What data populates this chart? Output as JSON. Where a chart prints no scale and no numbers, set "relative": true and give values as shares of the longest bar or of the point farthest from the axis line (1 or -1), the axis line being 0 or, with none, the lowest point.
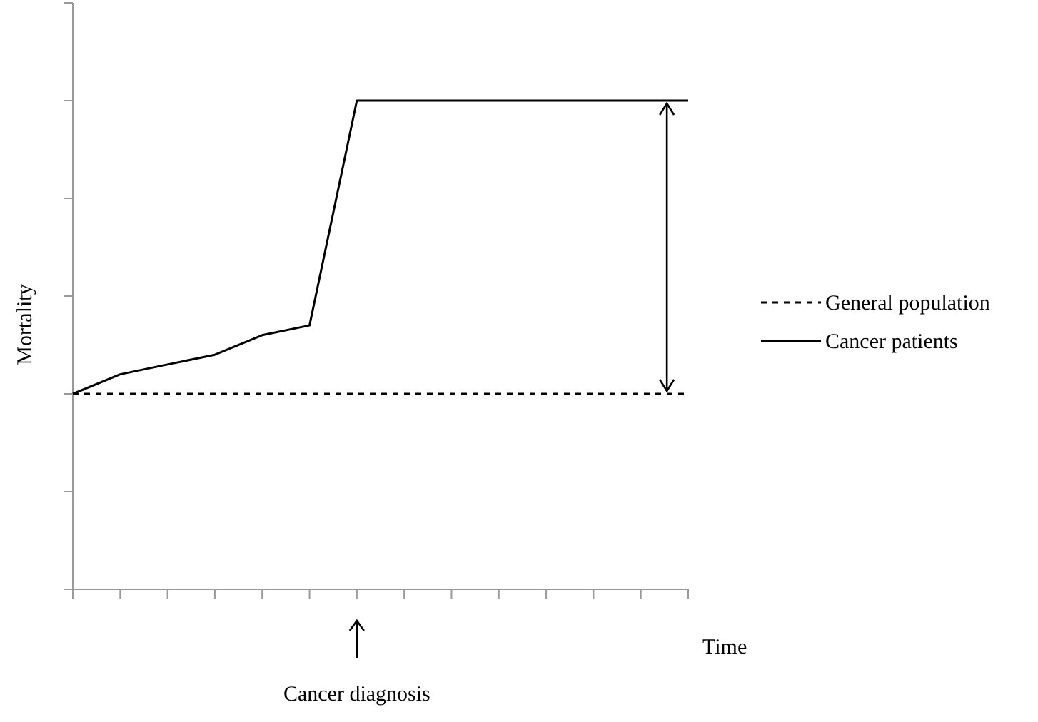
{
  "chart_data": {
    "type": "line",
    "relative": true,
    "xlabel": "Time",
    "ylabel": "Mortality",
    "legend": "right",
    "categories": [
      null,
      null,
      null,
      null,
      null,
      null,
      null,
      null,
      null,
      null,
      null,
      null,
      null,
      null
    ],
    "annotations": [
      "Cancer diagnosis"
    ],
    "series": [
      {
        "name": "General population",
        "color": "#000000",
        "line_style": "dashed",
        "values": [
          0.4,
          0.4,
          0.4,
          0.4,
          0.4,
          0.4,
          0.4,
          0.4,
          0.4,
          0.4,
          0.4,
          0.4,
          0.4,
          0.4
        ]
      },
      {
        "name": "Cancer patients",
        "color": "#000000",
        "line_style": "solid",
        "values": [
          0.4,
          0.44,
          0.46,
          0.48,
          0.52,
          0.54,
          1,
          1,
          1,
          1,
          1,
          1,
          1,
          1
        ]
      }
    ]
  }
}
